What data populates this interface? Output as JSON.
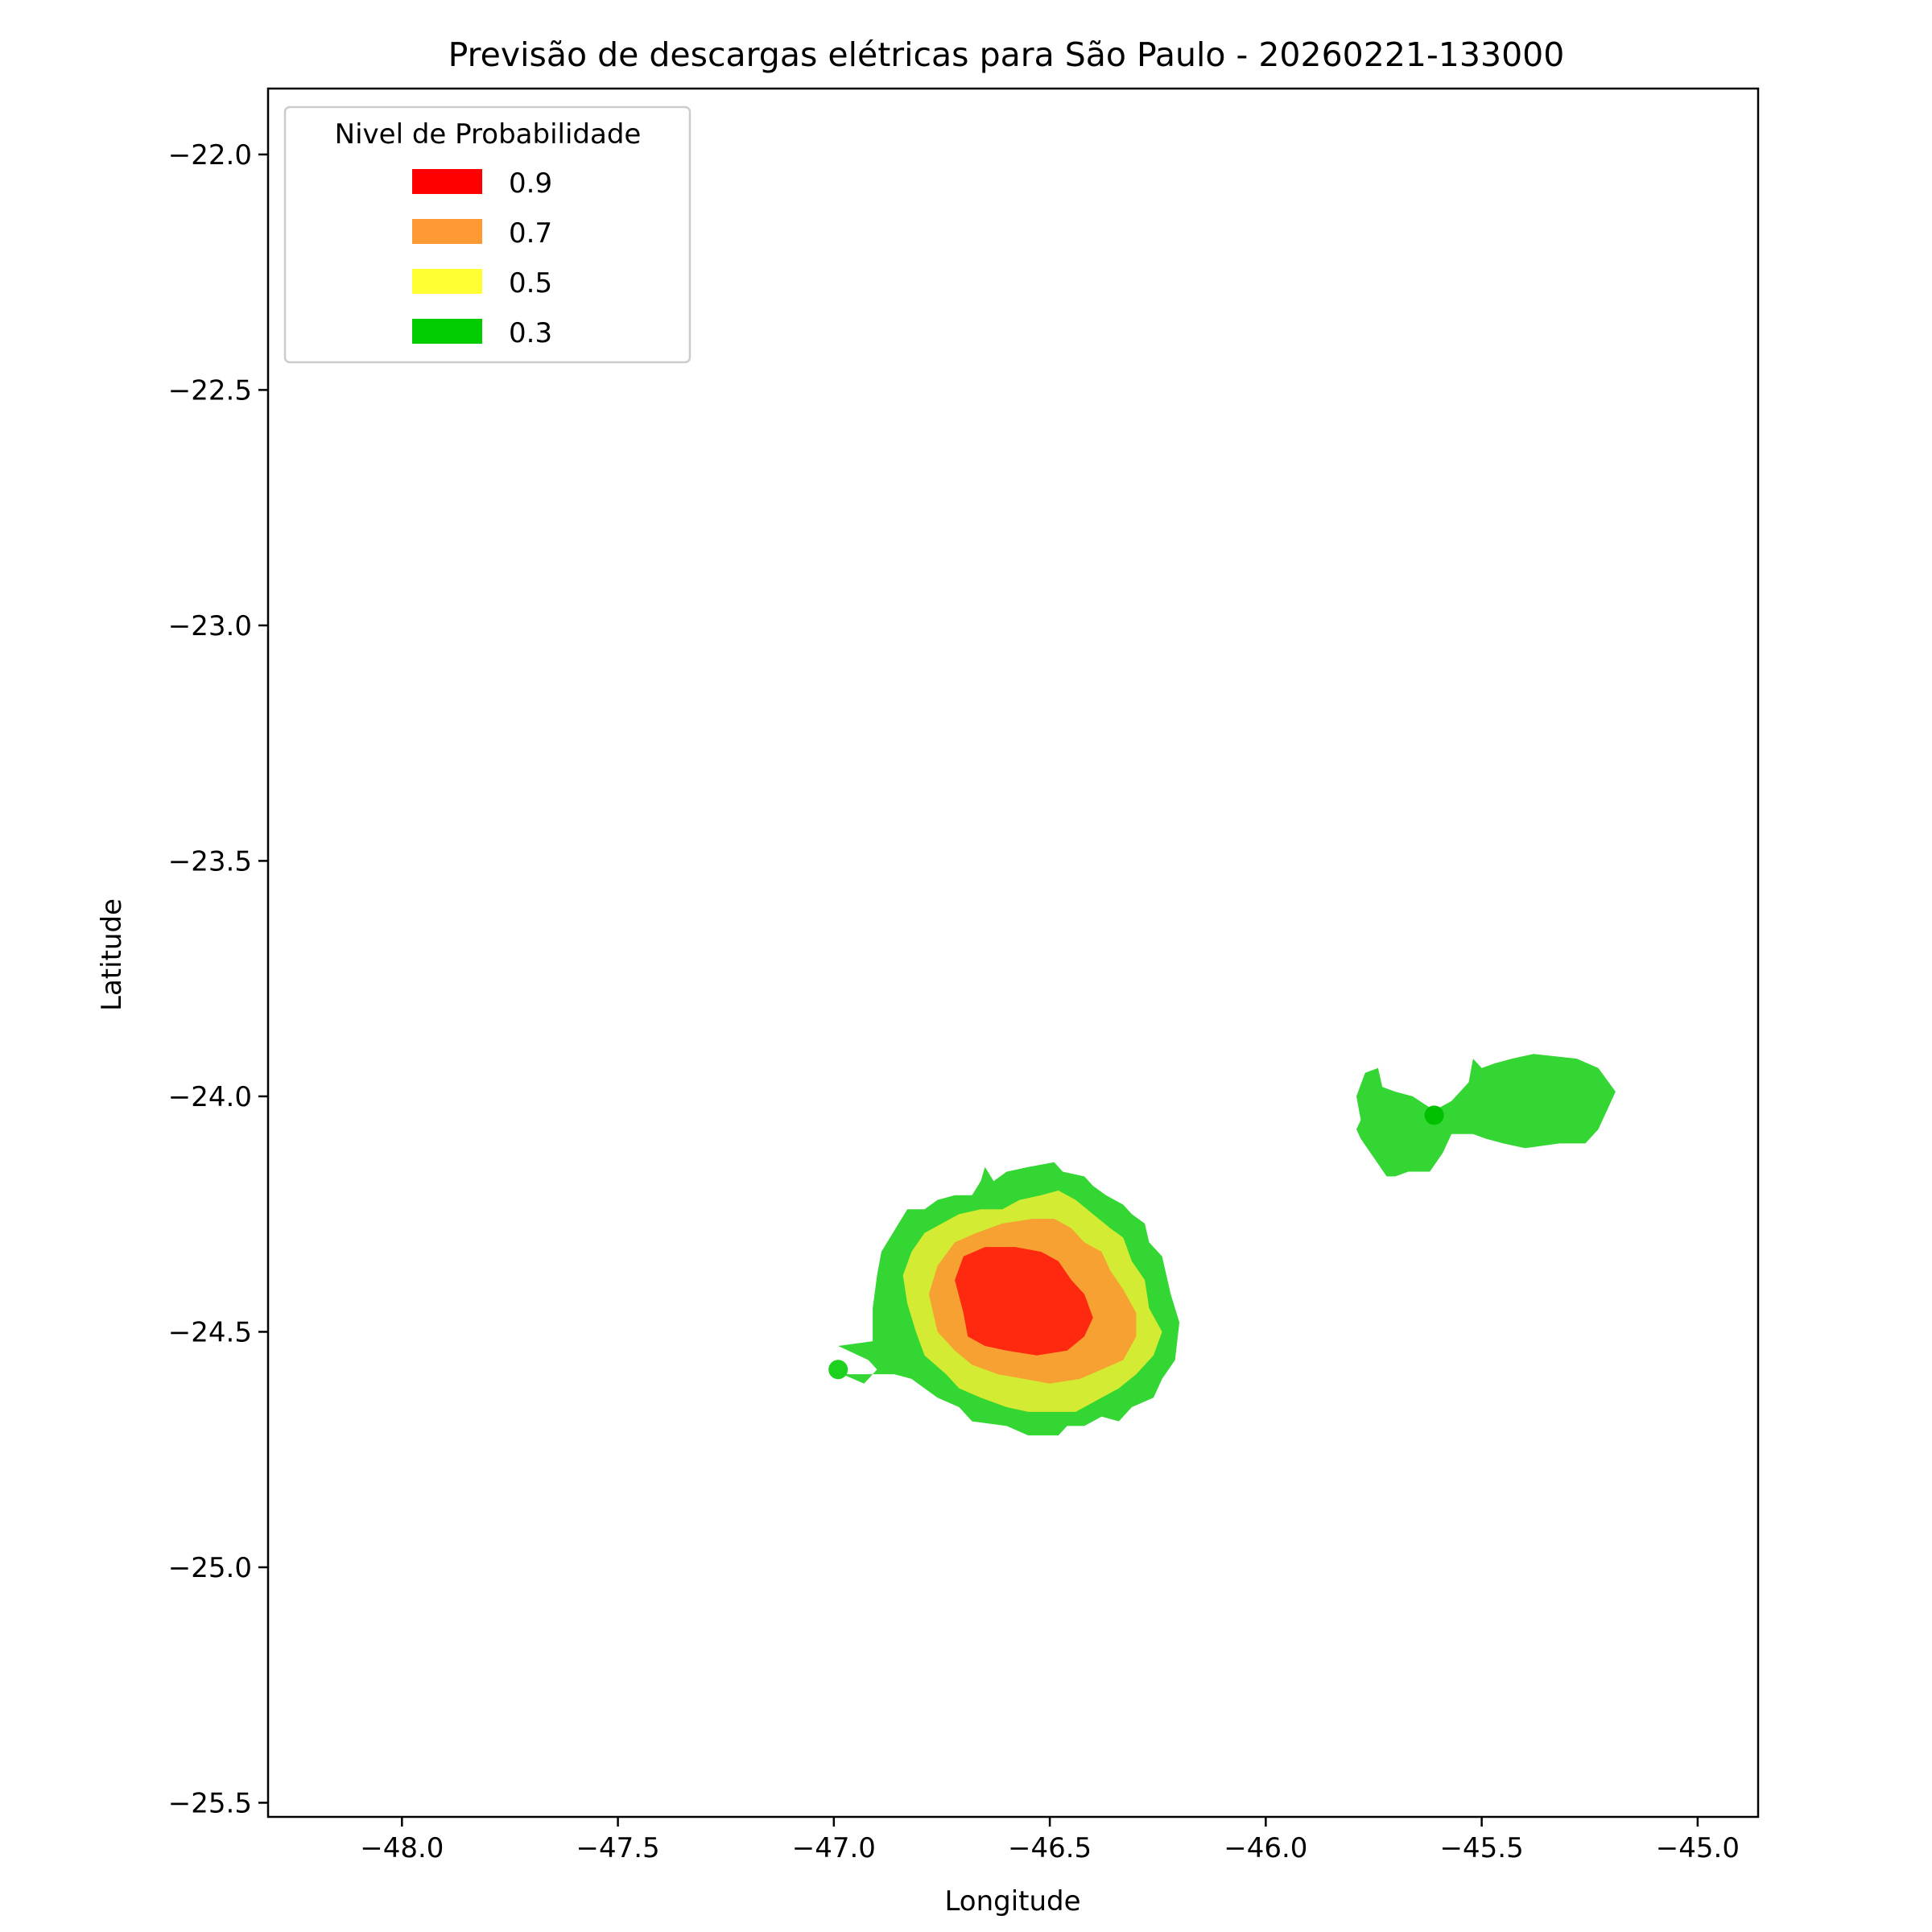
{
  "chart_data": {
    "type": "contour-map",
    "title": "Previsão de descargas elétricas para São Paulo - 20260221-133000",
    "xlabel": "Longitude",
    "ylabel": "Latitude",
    "xlim": [
      -48.31,
      -44.86
    ],
    "ylim": [
      -25.53,
      -21.86
    ],
    "xticks": [
      {
        "value": -48.0,
        "label": "−48.0"
      },
      {
        "value": -47.5,
        "label": "−47.5"
      },
      {
        "value": -47.0,
        "label": "−47.0"
      },
      {
        "value": -46.5,
        "label": "−46.5"
      },
      {
        "value": -46.0,
        "label": "−46.0"
      },
      {
        "value": -45.5,
        "label": "−45.5"
      },
      {
        "value": -45.0,
        "label": "−45.0"
      }
    ],
    "yticks": [
      {
        "value": -22.0,
        "label": "−22.0"
      },
      {
        "value": -22.5,
        "label": "−22.5"
      },
      {
        "value": -23.0,
        "label": "−23.0"
      },
      {
        "value": -23.5,
        "label": "−23.5"
      },
      {
        "value": -24.0,
        "label": "−24.0"
      },
      {
        "value": -24.5,
        "label": "−24.5"
      },
      {
        "value": -25.0,
        "label": "−25.0"
      },
      {
        "value": -25.5,
        "label": "−25.5"
      }
    ],
    "grid": false,
    "legend": {
      "title": "Nivel de Probabilidade",
      "placement": "top-left",
      "entries": [
        {
          "label": "0.9",
          "color": "#ff0000"
        },
        {
          "label": "0.7",
          "color": "#ff9933"
        },
        {
          "label": "0.5",
          "color": "#ffff33"
        },
        {
          "label": "0.3",
          "color": "#00cc00"
        }
      ]
    },
    "regions": [
      {
        "level": "0.3",
        "color": "#33d633",
        "polygon": [
          [
            -46.99,
            -24.53
          ],
          [
            -46.92,
            -24.56
          ],
          [
            -46.9,
            -24.58
          ],
          [
            -46.93,
            -24.61
          ],
          [
            -46.98,
            -24.59
          ],
          [
            -46.86,
            -24.59
          ],
          [
            -46.82,
            -24.6
          ],
          [
            -46.76,
            -24.64
          ],
          [
            -46.71,
            -24.66
          ],
          [
            -46.68,
            -24.69
          ],
          [
            -46.6,
            -24.7
          ],
          [
            -46.55,
            -24.72
          ],
          [
            -46.48,
            -24.72
          ],
          [
            -46.46,
            -24.7
          ],
          [
            -46.42,
            -24.7
          ],
          [
            -46.38,
            -24.68
          ],
          [
            -46.34,
            -24.69
          ],
          [
            -46.31,
            -24.66
          ],
          [
            -46.26,
            -24.64
          ],
          [
            -46.24,
            -24.6
          ],
          [
            -46.21,
            -24.56
          ],
          [
            -46.2,
            -24.48
          ],
          [
            -46.22,
            -24.42
          ],
          [
            -46.24,
            -24.34
          ],
          [
            -46.27,
            -24.31
          ],
          [
            -46.28,
            -24.27
          ],
          [
            -46.31,
            -24.25
          ],
          [
            -46.33,
            -24.23
          ],
          [
            -46.37,
            -24.21
          ],
          [
            -46.4,
            -24.19
          ],
          [
            -46.42,
            -24.17
          ],
          [
            -46.47,
            -24.16
          ],
          [
            -46.49,
            -24.14
          ],
          [
            -46.55,
            -24.15
          ],
          [
            -46.6,
            -24.16
          ],
          [
            -46.63,
            -24.18
          ],
          [
            -46.65,
            -24.15
          ],
          [
            -46.66,
            -24.18
          ],
          [
            -46.68,
            -24.21
          ],
          [
            -46.72,
            -24.21
          ],
          [
            -46.76,
            -24.22
          ],
          [
            -46.79,
            -24.24
          ],
          [
            -46.83,
            -24.24
          ],
          [
            -46.85,
            -24.27
          ],
          [
            -46.87,
            -24.3
          ],
          [
            -46.89,
            -24.33
          ],
          [
            -46.9,
            -24.38
          ],
          [
            -46.91,
            -24.45
          ],
          [
            -46.91,
            -24.52
          ]
        ]
      },
      {
        "level": "0.3",
        "color": "#33d633",
        "polygon": [
          [
            -45.79,
            -24.0
          ],
          [
            -45.77,
            -23.95
          ],
          [
            -45.74,
            -23.94
          ],
          [
            -45.73,
            -23.98
          ],
          [
            -45.7,
            -23.99
          ],
          [
            -45.66,
            -24.0
          ],
          [
            -45.61,
            -24.03
          ],
          [
            -45.57,
            -24.01
          ],
          [
            -45.55,
            -23.99
          ],
          [
            -45.53,
            -23.97
          ],
          [
            -45.52,
            -23.92
          ],
          [
            -45.5,
            -23.94
          ],
          [
            -45.47,
            -23.93
          ],
          [
            -45.43,
            -23.92
          ],
          [
            -45.38,
            -23.91
          ],
          [
            -45.28,
            -23.92
          ],
          [
            -45.23,
            -23.94
          ],
          [
            -45.19,
            -23.99
          ],
          [
            -45.21,
            -24.03
          ],
          [
            -45.23,
            -24.07
          ],
          [
            -45.26,
            -24.1
          ],
          [
            -45.32,
            -24.1
          ],
          [
            -45.4,
            -24.11
          ],
          [
            -45.45,
            -24.1
          ],
          [
            -45.49,
            -24.09
          ],
          [
            -45.52,
            -24.08
          ],
          [
            -45.57,
            -24.08
          ],
          [
            -45.59,
            -24.12
          ],
          [
            -45.62,
            -24.16
          ],
          [
            -45.67,
            -24.16
          ],
          [
            -45.7,
            -24.17
          ],
          [
            -45.72,
            -24.17
          ],
          [
            -45.75,
            -24.13
          ],
          [
            -45.78,
            -24.09
          ],
          [
            -45.79,
            -24.07
          ],
          [
            -45.78,
            -24.05
          ]
        ]
      },
      {
        "level": "0.5",
        "color": "#d4eb33",
        "polygon": [
          [
            -46.84,
            -24.38
          ],
          [
            -46.82,
            -24.33
          ],
          [
            -46.79,
            -24.29
          ],
          [
            -46.75,
            -24.27
          ],
          [
            -46.71,
            -24.25
          ],
          [
            -46.66,
            -24.24
          ],
          [
            -46.61,
            -24.24
          ],
          [
            -46.57,
            -24.22
          ],
          [
            -46.52,
            -24.21
          ],
          [
            -46.48,
            -24.2
          ],
          [
            -46.44,
            -24.22
          ],
          [
            -46.4,
            -24.25
          ],
          [
            -46.36,
            -24.28
          ],
          [
            -46.33,
            -24.3
          ],
          [
            -46.31,
            -24.35
          ],
          [
            -46.28,
            -24.39
          ],
          [
            -46.27,
            -24.45
          ],
          [
            -46.24,
            -24.5
          ],
          [
            -46.26,
            -24.55
          ],
          [
            -46.3,
            -24.59
          ],
          [
            -46.34,
            -24.62
          ],
          [
            -46.38,
            -24.64
          ],
          [
            -46.44,
            -24.67
          ],
          [
            -46.49,
            -24.67
          ],
          [
            -46.55,
            -24.67
          ],
          [
            -46.6,
            -24.66
          ],
          [
            -46.66,
            -24.64
          ],
          [
            -46.71,
            -24.62
          ],
          [
            -46.74,
            -24.59
          ],
          [
            -46.79,
            -24.55
          ],
          [
            -46.81,
            -24.5
          ],
          [
            -46.83,
            -24.44
          ]
        ]
      },
      {
        "level": "0.7",
        "color": "#f7a133",
        "polygon": [
          [
            -46.78,
            -24.42
          ],
          [
            -46.76,
            -24.36
          ],
          [
            -46.72,
            -24.31
          ],
          [
            -46.67,
            -24.29
          ],
          [
            -46.61,
            -24.27
          ],
          [
            -46.54,
            -24.26
          ],
          [
            -46.49,
            -24.26
          ],
          [
            -46.45,
            -24.28
          ],
          [
            -46.42,
            -24.31
          ],
          [
            -46.38,
            -24.33
          ],
          [
            -46.36,
            -24.37
          ],
          [
            -46.33,
            -24.41
          ],
          [
            -46.3,
            -24.46
          ],
          [
            -46.3,
            -24.51
          ],
          [
            -46.33,
            -24.56
          ],
          [
            -46.38,
            -24.58
          ],
          [
            -46.43,
            -24.6
          ],
          [
            -46.5,
            -24.61
          ],
          [
            -46.56,
            -24.6
          ],
          [
            -46.62,
            -24.59
          ],
          [
            -46.68,
            -24.57
          ],
          [
            -46.72,
            -24.54
          ],
          [
            -46.76,
            -24.5
          ],
          [
            -46.77,
            -24.46
          ]
        ]
      },
      {
        "level": "0.9",
        "color": "#ff2910",
        "polygon": [
          [
            -46.72,
            -24.39
          ],
          [
            -46.7,
            -24.34
          ],
          [
            -46.65,
            -24.32
          ],
          [
            -46.58,
            -24.32
          ],
          [
            -46.52,
            -24.33
          ],
          [
            -46.48,
            -24.35
          ],
          [
            -46.45,
            -24.39
          ],
          [
            -46.42,
            -24.42
          ],
          [
            -46.4,
            -24.47
          ],
          [
            -46.42,
            -24.51
          ],
          [
            -46.46,
            -24.54
          ],
          [
            -46.53,
            -24.55
          ],
          [
            -46.6,
            -24.54
          ],
          [
            -46.65,
            -24.53
          ],
          [
            -46.69,
            -24.51
          ],
          [
            -46.7,
            -24.46
          ]
        ]
      }
    ],
    "markers": [
      {
        "x": -46.99,
        "y": -24.58,
        "color": "#1fd11f"
      },
      {
        "x": -45.61,
        "y": -24.04,
        "color": "#00c000"
      }
    ]
  }
}
